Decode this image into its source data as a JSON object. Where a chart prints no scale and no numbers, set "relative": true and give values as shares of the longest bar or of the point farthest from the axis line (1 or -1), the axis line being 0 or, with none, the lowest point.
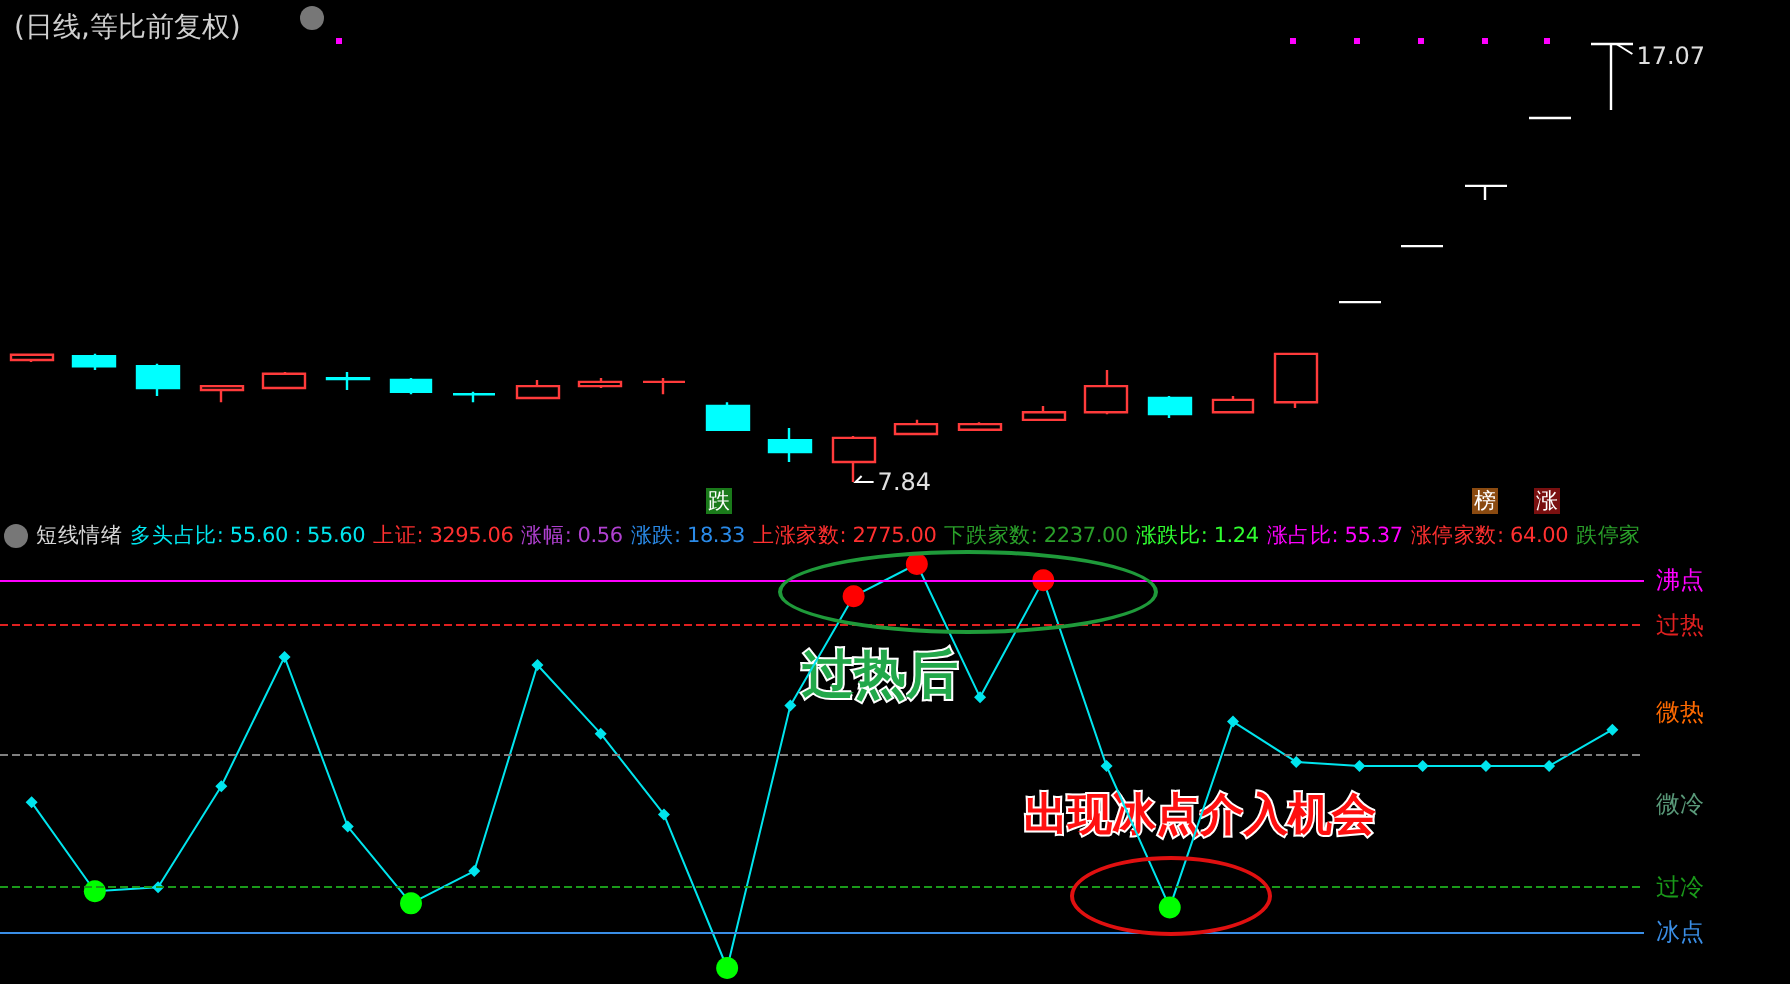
{
  "chart_data": [
    {
      "type": "candlestick",
      "title": "(日线,等比前复权)",
      "categories": [
        null,
        null,
        null,
        null,
        null,
        null,
        null,
        null,
        null,
        null,
        null,
        null,
        null,
        null,
        null,
        null,
        null,
        null,
        null,
        null,
        null,
        null,
        null,
        null,
        null,
        null
      ],
      "ohlc": [
        [
          10.41,
          10.52,
          10.37,
          10.52
        ],
        [
          10.49,
          10.54,
          10.2,
          10.28
        ],
        [
          10.28,
          10.33,
          9.65,
          9.82
        ],
        [
          9.78,
          9.86,
          9.52,
          9.86
        ],
        [
          9.82,
          10.16,
          9.82,
          10.12
        ],
        [
          10.03,
          10.16,
          9.78,
          10.01
        ],
        [
          9.99,
          10.03,
          9.69,
          9.74
        ],
        [
          9.69,
          9.74,
          9.52,
          9.69
        ],
        [
          9.61,
          9.99,
          9.61,
          9.86
        ],
        [
          9.86,
          10.03,
          9.82,
          9.95
        ],
        [
          9.95,
          10.03,
          9.69,
          9.95
        ],
        [
          9.44,
          9.52,
          8.94,
          8.94
        ],
        [
          8.72,
          8.98,
          8.26,
          8.47
        ],
        [
          8.26,
          8.81,
          7.84,
          8.77
        ],
        [
          8.85,
          9.15,
          8.85,
          9.06
        ],
        [
          8.94,
          9.1,
          8.94,
          9.06
        ],
        [
          9.15,
          9.44,
          9.15,
          9.31
        ],
        [
          9.31,
          10.2,
          9.27,
          9.86
        ],
        [
          9.61,
          9.65,
          9.19,
          9.27
        ],
        [
          9.31,
          9.65,
          9.31,
          9.57
        ],
        [
          9.52,
          10.54,
          9.4,
          10.54
        ],
        [
          11.63,
          11.63,
          11.63,
          11.63
        ],
        [
          12.81,
          12.81,
          12.81,
          12.81
        ],
        [
          14.08,
          14.08,
          13.78,
          14.08
        ],
        [
          15.51,
          15.51,
          15.51,
          15.51
        ],
        [
          17.07,
          17.07,
          15.68,
          17.07
        ]
      ],
      "colors": [
        "#ff3b3b",
        "#00ffff",
        "#00ffff",
        "#ff3b3b",
        "#ff3b3b",
        "#00ffff",
        "#00ffff",
        "#00ffff",
        "#ff3b3b",
        "#ff3b3b",
        "#ff3b3b",
        "#00ffff",
        "#00ffff",
        "#ff3b3b",
        "#ff3b3b",
        "#ff3b3b",
        "#ff3b3b",
        "#ff3b3b",
        "#00ffff",
        "#ff3b3b",
        "#ff3b3b",
        "#ffffff",
        "#ffffff",
        "#ffffff",
        "#ffffff",
        "#ffffff"
      ],
      "annotations": [
        "17.07",
        "7.84",
        "跌",
        "榜",
        "涨"
      ]
    },
    {
      "type": "line",
      "title": "短线情绪",
      "relative": true,
      "marker": "diamond",
      "categories": [
        null,
        null,
        null,
        null,
        null,
        null,
        null,
        null,
        null,
        null,
        null,
        null,
        null,
        null,
        null,
        null,
        null,
        null,
        null,
        null,
        null,
        null,
        null,
        null,
        null,
        null
      ],
      "series": [
        {
          "color": "#00e5ee",
          "values": [
            0.41,
            0.19,
            0.2,
            0.45,
            0.77,
            0.35,
            0.16,
            0.24,
            0.75,
            0.58,
            0.38,
            0,
            0.65,
            0.92,
            1,
            0.67,
            0.96,
            0.5,
            0.15,
            0.61,
            0.51,
            0.5,
            0.5,
            0.5,
            0.5,
            0.59
          ],
          "colors": [
            "#00e5ee",
            "#00ff00",
            "#00e5ee",
            "#00e5ee",
            "#00e5ee",
            "#00e5ee",
            "#00ff00",
            "#00e5ee",
            "#00e5ee",
            "#00e5ee",
            "#00e5ee",
            "#00ff00",
            "#00e5ee",
            "#ff0000",
            "#ff0000",
            "#00e5ee",
            "#ff0000",
            "#00e5ee",
            "#00ff00",
            "#00e5ee",
            "#00e5ee",
            "#00e5ee",
            "#00e5ee",
            "#00e5ee",
            "#00e5ee",
            "#00e5ee"
          ]
        }
      ],
      "ref_lines": [
        {
          "axis": "y",
          "value": 0.96,
          "label": "沸点",
          "color": "#ff00ff",
          "line_style": "solid"
        },
        {
          "axis": "y",
          "value": 0.85,
          "label": "过热",
          "color": "#e02020",
          "line_style": "dashed"
        },
        {
          "axis": "y",
          "value": 0.53,
          "label": null,
          "color": "#808080",
          "line_style": "dashed"
        },
        {
          "axis": "y",
          "value": 0.2,
          "label": "过冷",
          "color": "#1a9a1a",
          "line_style": "dashed"
        },
        {
          "axis": "y",
          "value": 0.09,
          "label": "冰点",
          "color": "#3a8ee6",
          "line_style": "solid"
        }
      ],
      "annotations": [
        "多头占比: 55.60 : 55.60",
        "上证: 3295.06",
        "涨幅: 0.56",
        "涨跌: 18.33",
        "上涨家数: 2775.00",
        "下跌家数: 2237.00",
        "涨跌比: 1.24",
        "涨占比: 55.37",
        "涨停家数: 64.00",
        "跌停家",
        "过热后",
        "出现冰点介入机会",
        "微热",
        "微冷"
      ]
    }
  ]
}
